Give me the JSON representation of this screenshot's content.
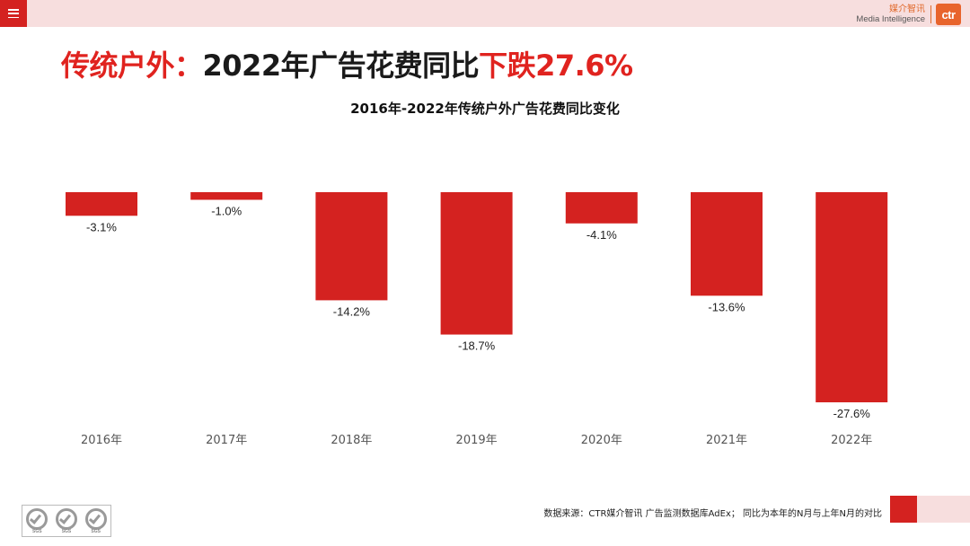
{
  "header": {
    "menu_icon": "hamburger-menu-icon",
    "brand_cn": "媒介智讯",
    "brand_en": "Media Intelligence",
    "brand_logo": "ctr"
  },
  "headline": {
    "part1": "传统户外：",
    "part2": "2022年广告花费同比",
    "part3": "下跌27.6%"
  },
  "colors": {
    "accent_red": "#d42220",
    "bar_red": "#d42220",
    "headline_red": "#e0231f",
    "top_bar_pink": "#f7dede",
    "brand_orange": "#e8642c"
  },
  "chart_data": {
    "type": "bar",
    "title": "2016年-2022年传统户外广告花费同比变化",
    "categories": [
      "2016年",
      "2017年",
      "2018年",
      "2019年",
      "2020年",
      "2021年",
      "2022年"
    ],
    "values": [
      -3.1,
      -1.0,
      -14.2,
      -18.7,
      -4.1,
      -13.6,
      -27.6
    ],
    "data_labels": [
      "-3.1%",
      "-1.0%",
      "-14.2%",
      "-18.7%",
      "-4.1%",
      "-13.6%",
      "-27.6%"
    ],
    "ylim": [
      -27.6,
      0
    ],
    "grid": false,
    "legend": "none"
  },
  "footer": {
    "source": "数据来源：CTR媒介智讯 广告监测数据库AdEx； 同比为本年的N月与上年N月的对比",
    "badges": [
      "SGS",
      "SGS",
      "SGS"
    ]
  }
}
